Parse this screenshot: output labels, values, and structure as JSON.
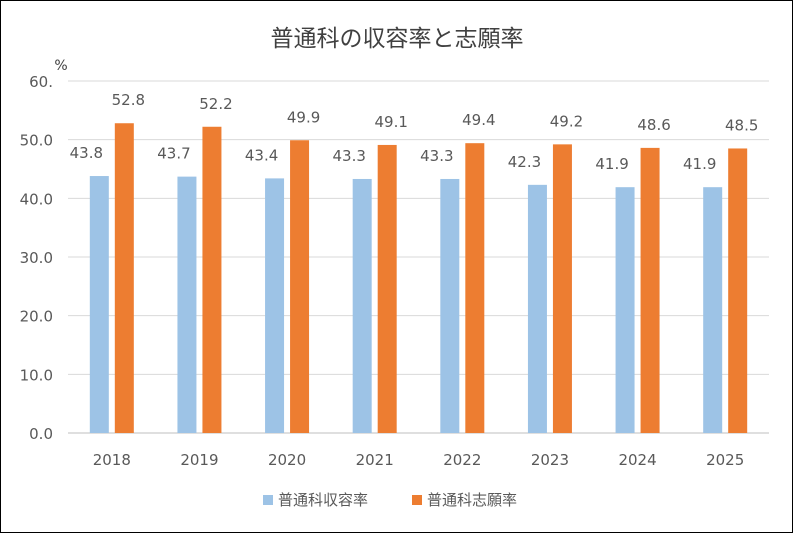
{
  "chart_data": {
    "type": "bar",
    "title": "普通科の収容率と志願率",
    "ylabel": "%",
    "categories": [
      "2018",
      "2019",
      "2020",
      "2021",
      "2022",
      "2023",
      "2024",
      "2025"
    ],
    "series": [
      {
        "name": "普通科収容率",
        "color": "#9DC3E6",
        "values": [
          43.8,
          43.7,
          43.4,
          43.3,
          43.3,
          42.3,
          41.9,
          41.9
        ]
      },
      {
        "name": "普通科志願率",
        "color": "#ED7D31",
        "values": [
          52.8,
          52.2,
          49.9,
          49.1,
          49.4,
          49.2,
          48.6,
          48.5
        ]
      }
    ],
    "ylim": [
      0,
      60
    ],
    "yticks": [
      "0.0",
      "10.0",
      "20.0",
      "30.0",
      "40.0",
      "50.0",
      "60."
    ],
    "grid": true,
    "legend": "bottom"
  }
}
